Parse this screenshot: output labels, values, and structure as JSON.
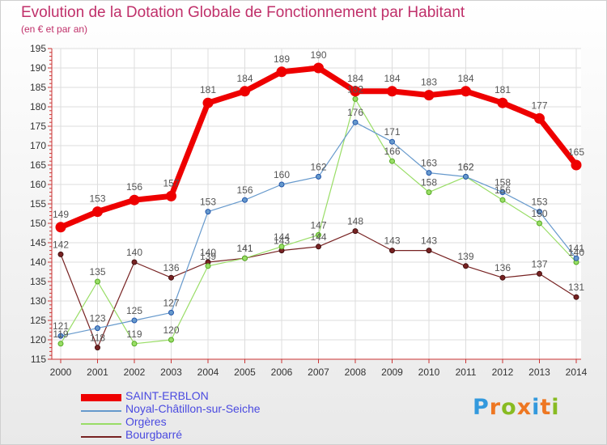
{
  "chart_data": {
    "type": "line",
    "title": "Evolution de la Dotation Globale de Fonctionnement par Habitant",
    "subtitle": "(en € et par an)",
    "x": [
      "2000",
      "2001",
      "2002",
      "2003",
      "2004",
      "2005",
      "2006",
      "2007",
      "2008",
      "2009",
      "2010",
      "2011",
      "2012",
      "2013",
      "2014"
    ],
    "ylim": [
      115,
      195
    ],
    "yticks": [
      115,
      120,
      125,
      130,
      135,
      140,
      145,
      150,
      155,
      160,
      165,
      170,
      175,
      180,
      185,
      190,
      195
    ],
    "grid": true,
    "series": [
      {
        "name": "SAINT-ERBLON",
        "color": "#ee0000",
        "values": [
          149,
          153,
          156,
          157,
          181,
          184,
          189,
          190,
          184,
          184,
          183,
          184,
          181,
          177,
          165
        ]
      },
      {
        "name": "Noyal-Châtillon-sur-Seiche",
        "color": "#6699cc",
        "values": [
          121,
          123,
          125,
          127,
          153,
          156,
          160,
          162,
          176,
          171,
          163,
          162,
          158,
          153,
          141
        ]
      },
      {
        "name": "Orgères",
        "color": "#99dd66",
        "values": [
          119,
          135,
          119,
          120,
          139,
          141,
          144,
          147,
          182,
          166,
          158,
          162,
          156,
          150,
          140
        ]
      },
      {
        "name": "Bourgbarré",
        "color": "#772222",
        "values": [
          142,
          118,
          140,
          136,
          140,
          141,
          143,
          144,
          148,
          143,
          143,
          139,
          136,
          137,
          131
        ]
      }
    ]
  },
  "legend": {
    "placement": "bottom-left"
  },
  "logo": {
    "text": "Proxiti",
    "colors": [
      "#3399dd",
      "#ee7722",
      "#88bb22",
      "#ee7722",
      "#3399dd",
      "#ee7722",
      "#88bb22"
    ]
  }
}
